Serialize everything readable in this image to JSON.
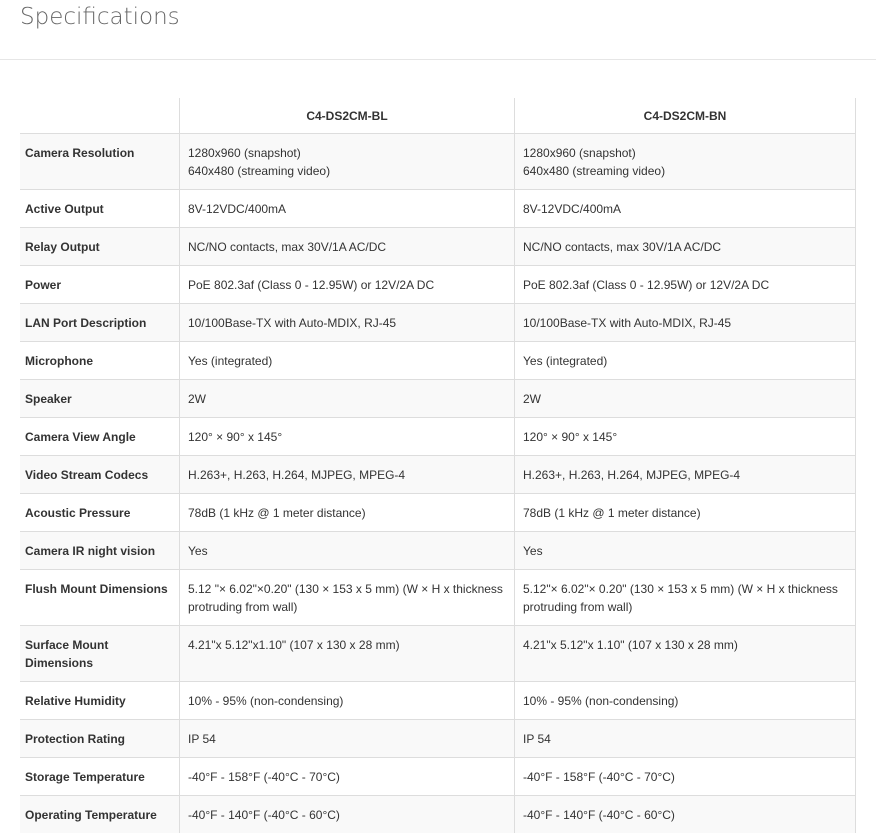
{
  "page_title": "Specifications",
  "table": {
    "headers": [
      "",
      "C4-DS2CM-BL",
      "C4-DS2CM-BN"
    ],
    "rows": [
      {
        "label": "Camera Resolution",
        "bl": [
          "1280x960 (snapshot)",
          "640x480 (streaming video)"
        ],
        "bn": [
          "1280x960 (snapshot)",
          "640x480 (streaming video)"
        ]
      },
      {
        "label": "Active Output",
        "bl": [
          "8V-12VDC/400mA"
        ],
        "bn": [
          "8V-12VDC/400mA"
        ]
      },
      {
        "label": "Relay Output",
        "bl": [
          "NC/NO contacts, max 30V/1A AC/DC"
        ],
        "bn": [
          "NC/NO contacts, max 30V/1A AC/DC"
        ]
      },
      {
        "label": "Power",
        "bl": [
          "PoE 802.3af (Class 0 - 12.95W) or 12V/2A DC"
        ],
        "bn": [
          "PoE 802.3af (Class 0 - 12.95W) or 12V/2A DC"
        ]
      },
      {
        "label": "LAN Port Description",
        "bl": [
          "10/100Base-TX with Auto-MDIX, RJ-45"
        ],
        "bn": [
          "10/100Base-TX with Auto-MDIX, RJ-45"
        ]
      },
      {
        "label": "Microphone",
        "bl": [
          "Yes (integrated)"
        ],
        "bn": [
          "Yes (integrated)"
        ]
      },
      {
        "label": "Speaker",
        "bl": [
          "2W"
        ],
        "bn": [
          "2W"
        ]
      },
      {
        "label": "Camera View Angle",
        "bl": [
          "120° × 90° x 145°"
        ],
        "bn": [
          "120° × 90° x 145°"
        ]
      },
      {
        "label": "Video Stream Codecs",
        "bl": [
          "H.263+, H.263, H.264, MJPEG, MPEG-4"
        ],
        "bn": [
          "H.263+, H.263, H.264, MJPEG, MPEG-4"
        ]
      },
      {
        "label": "Acoustic Pressure",
        "bl": [
          "78dB (1 kHz @ 1 meter distance)"
        ],
        "bn": [
          "78dB (1 kHz @ 1 meter distance)"
        ]
      },
      {
        "label": "Camera IR night vision",
        "bl": [
          "Yes"
        ],
        "bn": [
          "Yes"
        ]
      },
      {
        "label": "Flush Mount Dimensions",
        "bl": [
          "5.12 \"× 6.02\"×0.20\" (130 × 153 x 5 mm) (W × H x thickness protruding from wall)"
        ],
        "bn": [
          "5.12\"× 6.02\"× 0.20\" (130 × 153 x 5 mm) (W × H x thickness protruding from wall)"
        ]
      },
      {
        "label": "Surface Mount Dimensions",
        "bl": [
          "4.21\"x 5.12\"x1.10\" (107 x 130 x 28 mm)"
        ],
        "bn": [
          "4.21\"x 5.12\"x 1.10\" (107 x 130 x 28 mm)"
        ]
      },
      {
        "label": "Relative Humidity",
        "bl": [
          "10% - 95% (non-condensing)"
        ],
        "bn": [
          "10% - 95% (non-condensing)"
        ]
      },
      {
        "label": "Protection Rating",
        "bl": [
          "IP 54"
        ],
        "bn": [
          "IP 54"
        ]
      },
      {
        "label": "Storage Temperature",
        "bl": [
          "-40°F - 158°F (-40°C - 70°C)"
        ],
        "bn": [
          "-40°F - 158°F (-40°C - 70°C)"
        ]
      },
      {
        "label": "Operating Temperature",
        "bl": [
          "-40°F - 140°F (-40°C - 60°C)"
        ],
        "bn": [
          "-40°F - 140°F (-40°C - 60°C)"
        ]
      }
    ]
  }
}
